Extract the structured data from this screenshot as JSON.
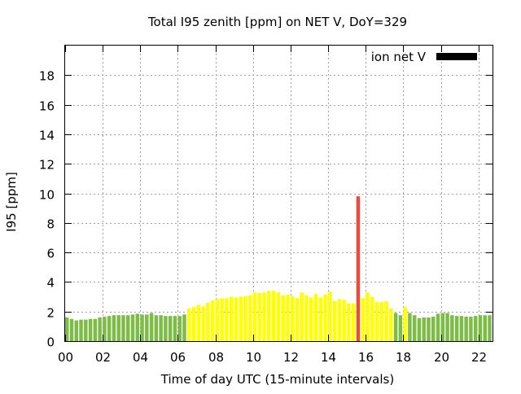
{
  "chart_data": {
    "type": "bar",
    "title": "Total I95 zenith [ppm] on NET V, DoY=329",
    "xlabel": "Time of day UTC (15-minute intervals)",
    "ylabel": "I95 [ppm]",
    "xlim": [
      0,
      22.75
    ],
    "ylim": [
      0,
      20
    ],
    "x_tick_labels": [
      "00",
      "02",
      "04",
      "06",
      "08",
      "10",
      "12",
      "14",
      "16",
      "18",
      "20",
      "22"
    ],
    "x_tick_values": [
      0,
      2,
      4,
      6,
      8,
      10,
      12,
      14,
      16,
      18,
      20,
      22
    ],
    "y_tick_labels": [
      "0",
      "2",
      "4",
      "6",
      "8",
      "10",
      "12",
      "14",
      "16",
      "18"
    ],
    "y_tick_values": [
      0,
      2,
      4,
      6,
      8,
      10,
      12,
      14,
      16,
      18
    ],
    "grid": true,
    "legend": {
      "position": "top-right",
      "entries": [
        {
          "label": "ion net V",
          "color": "#000000"
        }
      ]
    },
    "colors": {
      "green": "#7dbc47",
      "yellow": "#ffff00",
      "red": "#e74c3c"
    },
    "bar_interval_hours": 0.25,
    "series": [
      {
        "x": [
          0,
          0.25,
          0.5,
          0.75,
          1,
          1.25,
          1.5,
          1.75,
          2,
          2.25,
          2.5,
          2.75,
          3,
          3.25,
          3.5,
          3.75,
          4,
          4.25,
          4.5,
          4.75,
          5,
          5.25,
          5.5,
          5.75,
          6,
          6.25,
          6.5,
          6.75,
          7,
          7.25,
          7.5,
          7.75,
          8,
          8.25,
          8.5,
          8.75,
          9,
          9.25,
          9.5,
          9.75,
          10,
          10.25,
          10.5,
          10.75,
          11,
          11.25,
          11.5,
          11.75,
          12,
          12.25,
          12.5,
          12.75,
          13,
          13.25,
          13.5,
          13.75,
          14,
          14.25,
          14.5,
          14.75,
          15,
          15.25,
          15.5,
          15.75,
          16,
          16.25,
          16.5,
          16.75,
          17,
          17.25,
          17.5,
          17.75,
          18,
          18.25,
          18.5,
          18.75,
          19,
          19.25,
          19.5,
          19.75,
          20,
          20.25,
          20.5,
          20.75,
          21,
          21.25,
          21.5,
          21.75,
          22,
          22.25,
          22.5
        ],
        "values": [
          1.6,
          1.5,
          1.4,
          1.45,
          1.45,
          1.5,
          1.5,
          1.6,
          1.65,
          1.7,
          1.75,
          1.75,
          1.75,
          1.75,
          1.8,
          1.85,
          1.8,
          1.8,
          1.9,
          1.75,
          1.75,
          1.7,
          1.7,
          1.7,
          1.7,
          1.8,
          2.2,
          2.3,
          2.45,
          2.35,
          2.6,
          2.75,
          2.85,
          2.9,
          2.9,
          3.0,
          2.95,
          3.0,
          3.05,
          3.1,
          3.3,
          3.25,
          3.3,
          3.4,
          3.4,
          3.3,
          3.1,
          3.15,
          3.05,
          2.9,
          3.3,
          3.1,
          2.95,
          3.2,
          2.95,
          3.15,
          3.35,
          2.7,
          2.85,
          2.8,
          2.55,
          2.55,
          9.8,
          2.9,
          3.3,
          3.0,
          2.65,
          2.65,
          2.7,
          2.2,
          1.9,
          1.75,
          2.3,
          1.9,
          1.75,
          1.55,
          1.6,
          1.6,
          1.65,
          1.85,
          1.9,
          1.9,
          1.75,
          1.7,
          1.7,
          1.65,
          1.65,
          1.7,
          1.75,
          1.75,
          1.75
        ],
        "colors": [
          "green",
          "green",
          "green",
          "green",
          "green",
          "green",
          "green",
          "green",
          "green",
          "green",
          "green",
          "green",
          "green",
          "green",
          "green",
          "green",
          "green",
          "green",
          "green",
          "green",
          "green",
          "green",
          "green",
          "green",
          "green",
          "green",
          "yellow",
          "yellow",
          "yellow",
          "yellow",
          "yellow",
          "yellow",
          "yellow",
          "yellow",
          "yellow",
          "yellow",
          "yellow",
          "yellow",
          "yellow",
          "yellow",
          "yellow",
          "yellow",
          "yellow",
          "yellow",
          "yellow",
          "yellow",
          "yellow",
          "yellow",
          "yellow",
          "yellow",
          "yellow",
          "yellow",
          "yellow",
          "yellow",
          "yellow",
          "yellow",
          "yellow",
          "yellow",
          "yellow",
          "yellow",
          "yellow",
          "yellow",
          "red",
          "yellow",
          "yellow",
          "yellow",
          "yellow",
          "yellow",
          "yellow",
          "yellow",
          "green",
          "green",
          "yellow",
          "green",
          "green",
          "green",
          "green",
          "green",
          "green",
          "green",
          "green",
          "green",
          "green",
          "green",
          "green",
          "green",
          "green",
          "green",
          "green",
          "green",
          "green"
        ]
      }
    ]
  }
}
